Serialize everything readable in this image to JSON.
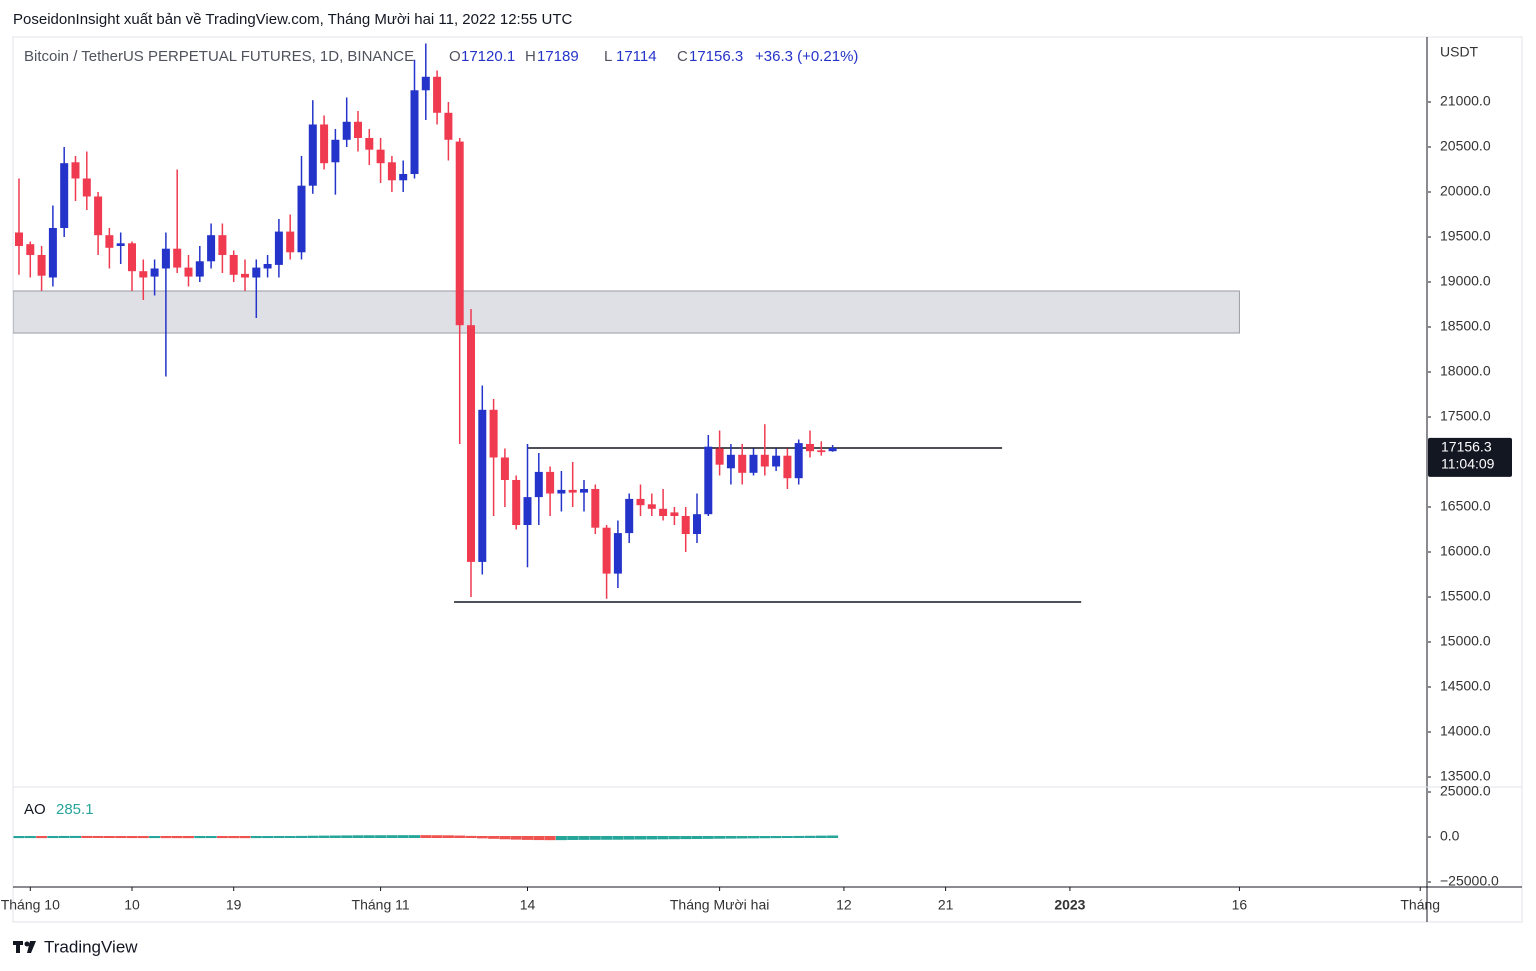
{
  "chart_data": {
    "type": "candlestick",
    "title": "PoseidonInsight xuất bản về TradingView.com, Tháng Mười hai 11, 2022 12:55 UTC",
    "symbol": "Bitcoin / TetherUS PERPETUAL FUTURES, 1D, BINANCE",
    "legend_labels": [
      "O",
      "H",
      "L",
      "C"
    ],
    "change": "+36.3 (+0.21%)",
    "y_axis_unit": "USDT",
    "countdown": "11:04:09",
    "brand": "TradingView",
    "up_color": "#2433c9",
    "down_color": "#ef3a50",
    "x": [
      0,
      1,
      2,
      3,
      4,
      5,
      6,
      7,
      8,
      9,
      10,
      11,
      12,
      13,
      14,
      15,
      16,
      17,
      18,
      19,
      20,
      21,
      22,
      23,
      24,
      25,
      26,
      27,
      28,
      29,
      30,
      31,
      32,
      33,
      34,
      35,
      36,
      37,
      38,
      39,
      40,
      41,
      42,
      43,
      44,
      45,
      46,
      47,
      48,
      49,
      50,
      51,
      52,
      53,
      54,
      55,
      56,
      57,
      58,
      59,
      60,
      61,
      62,
      63,
      64,
      65,
      66,
      67,
      68,
      69,
      70,
      71,
      72
    ],
    "open": [
      19550,
      19420,
      19300,
      19050,
      19600,
      20330,
      20150,
      19950,
      19520,
      19400,
      19430,
      19120,
      19060,
      19150,
      19370,
      19160,
      19060,
      19230,
      19520,
      19300,
      19090,
      19050,
      19150,
      19190,
      19560,
      19330,
      20070,
      20750,
      20330,
      20580,
      20780,
      20600,
      20470,
      20330,
      20130,
      20200,
      21130,
      21280,
      20880,
      20560,
      18520,
      15890,
      17580,
      17050,
      16800,
      16300,
      16610,
      16890,
      16650,
      16690,
      16660,
      16700,
      16270,
      15760,
      16210,
      16590,
      16530,
      16480,
      16440,
      16400,
      16200,
      16420,
      17150,
      16930,
      17080,
      16880,
      17080,
      16950,
      17070,
      16820,
      17200,
      17130,
      17120.1
    ],
    "high": [
      20150,
      19450,
      19400,
      19850,
      20500,
      20400,
      20450,
      20000,
      19600,
      19550,
      19450,
      19250,
      19250,
      19550,
      20250,
      19300,
      19400,
      19650,
      19650,
      19350,
      19250,
      19250,
      19300,
      19700,
      19750,
      20400,
      21020,
      20850,
      20700,
      21050,
      20900,
      20700,
      20600,
      20400,
      20350,
      21470,
      21650,
      21350,
      21000,
      20600,
      18700,
      17850,
      17700,
      17150,
      16850,
      17200,
      17100,
      16950,
      16900,
      17000,
      16800,
      16750,
      16300,
      16350,
      16650,
      16750,
      16650,
      16700,
      16500,
      16500,
      16650,
      17300,
      17350,
      17200,
      17200,
      17150,
      17420,
      17150,
      17150,
      17250,
      17350,
      17230,
      17189.0
    ],
    "low": [
      19080,
      19050,
      18900,
      18950,
      19500,
      19900,
      19800,
      19300,
      19150,
      19200,
      18900,
      18800,
      18850,
      17950,
      19100,
      18950,
      19000,
      19150,
      19100,
      19000,
      18900,
      18600,
      19050,
      19050,
      19250,
      19250,
      19980,
      20250,
      19970,
      20500,
      20450,
      20300,
      20100,
      20000,
      20000,
      20150,
      20800,
      20750,
      20350,
      17200,
      15500,
      15750,
      16400,
      16500,
      16250,
      15830,
      16300,
      16400,
      16450,
      16500,
      16450,
      16200,
      15480,
      15600,
      16100,
      16400,
      16400,
      16350,
      16300,
      16000,
      16100,
      16400,
      16850,
      16750,
      16750,
      16850,
      16850,
      16900,
      16700,
      16750,
      17050,
      17070,
      17114.0
    ],
    "close": [
      19400,
      19300,
      19070,
      19600,
      20320,
      20150,
      19950,
      19520,
      19380,
      19430,
      19120,
      19050,
      19150,
      19370,
      19160,
      19060,
      19230,
      19520,
      19300,
      19080,
      19050,
      19160,
      19200,
      19560,
      19330,
      20070,
      20750,
      20320,
      20580,
      20780,
      20600,
      20470,
      20320,
      20130,
      20200,
      21130,
      21280,
      20880,
      20580,
      18520,
      15890,
      17580,
      17050,
      16800,
      16300,
      16610,
      16890,
      16650,
      16690,
      16660,
      16700,
      16270,
      15760,
      16210,
      16590,
      16520,
      16480,
      16400,
      16400,
      16200,
      16420,
      17170,
      16970,
      17080,
      16880,
      17080,
      16950,
      17070,
      16820,
      17210,
      17120,
      17110,
      17156.3
    ],
    "xlim": [
      -0.53,
      124.6
    ],
    "xticks": [
      {
        "value": 1,
        "label": "Tháng 10"
      },
      {
        "value": 10,
        "label": "10"
      },
      {
        "value": 19,
        "label": "19"
      },
      {
        "value": 32,
        "label": "Tháng 11"
      },
      {
        "value": 45,
        "label": "14"
      },
      {
        "value": 62,
        "label": "Tháng Mười hai"
      },
      {
        "value": 73,
        "label": "12"
      },
      {
        "value": 82,
        "label": "21"
      },
      {
        "value": 93,
        "label": "2023"
      },
      {
        "value": 108,
        "label": "16"
      },
      {
        "value": 124,
        "label": "Tháng"
      }
    ],
    "bold_xtick": "2023",
    "ylim": [
      13389,
      21722
    ],
    "yticks": [
      {
        "value": 13500,
        "label": "13500.0"
      },
      {
        "value": 14000,
        "label": "14000.0"
      },
      {
        "value": 14500,
        "label": "14500.0"
      },
      {
        "value": 15000,
        "label": "15000.0"
      },
      {
        "value": 15500,
        "label": "15500.0"
      },
      {
        "value": 16000,
        "label": "16000.0"
      },
      {
        "value": 16500,
        "label": "16500.0"
      },
      {
        "value": 17000,
        "label": "17000.0"
      },
      {
        "value": 17500,
        "label": "17500.0"
      },
      {
        "value": 18000,
        "label": "18000.0"
      },
      {
        "value": 18500,
        "label": "18500.0"
      },
      {
        "value": 19000,
        "label": "19000.0"
      },
      {
        "value": 19500,
        "label": "19500.0"
      },
      {
        "value": 20000,
        "label": "20000.0"
      },
      {
        "value": 20500,
        "label": "20500.0"
      },
      {
        "value": 21000,
        "label": "21000.0"
      }
    ],
    "zone": {
      "low": 18433,
      "high": 18900,
      "x_start": -0.53,
      "x_end": 108
    },
    "levels": [
      {
        "value": 17156,
        "x_start": 45,
        "x_end": 87
      },
      {
        "value": 15444,
        "x_start": 38.5,
        "x_end": 94
      }
    ],
    "indicator": {
      "name": "AO",
      "up_color": "#26a69a",
      "down_color": "#ef5350",
      "values": [
        -50,
        -40,
        -60,
        -30,
        20,
        40,
        30,
        10,
        -10,
        -20,
        -40,
        -50,
        -45,
        -60,
        -70,
        -80,
        -60,
        -40,
        -50,
        -70,
        -80,
        -60,
        -40,
        -20,
        10,
        60,
        150,
        220,
        280,
        340,
        390,
        420,
        430,
        440,
        460,
        480,
        470,
        430,
        380,
        250,
        50,
        -200,
        -450,
        -700,
        -900,
        -1050,
        -1150,
        -1200,
        -1180,
        -1100,
        -1050,
        -1000,
        -980,
        -950,
        -900,
        -850,
        -800,
        -740,
        -680,
        -620,
        -560,
        -480,
        -400,
        -330,
        -260,
        -200,
        -130,
        -70,
        -20,
        40,
        120,
        200,
        285.1
      ],
      "ylim": [
        -27778,
        27778
      ],
      "yticks": [
        {
          "value": 25000,
          "label": "25000.0"
        },
        {
          "value": 0,
          "label": "0.0"
        },
        {
          "value": -25000,
          "label": "−25000.0"
        }
      ]
    }
  }
}
